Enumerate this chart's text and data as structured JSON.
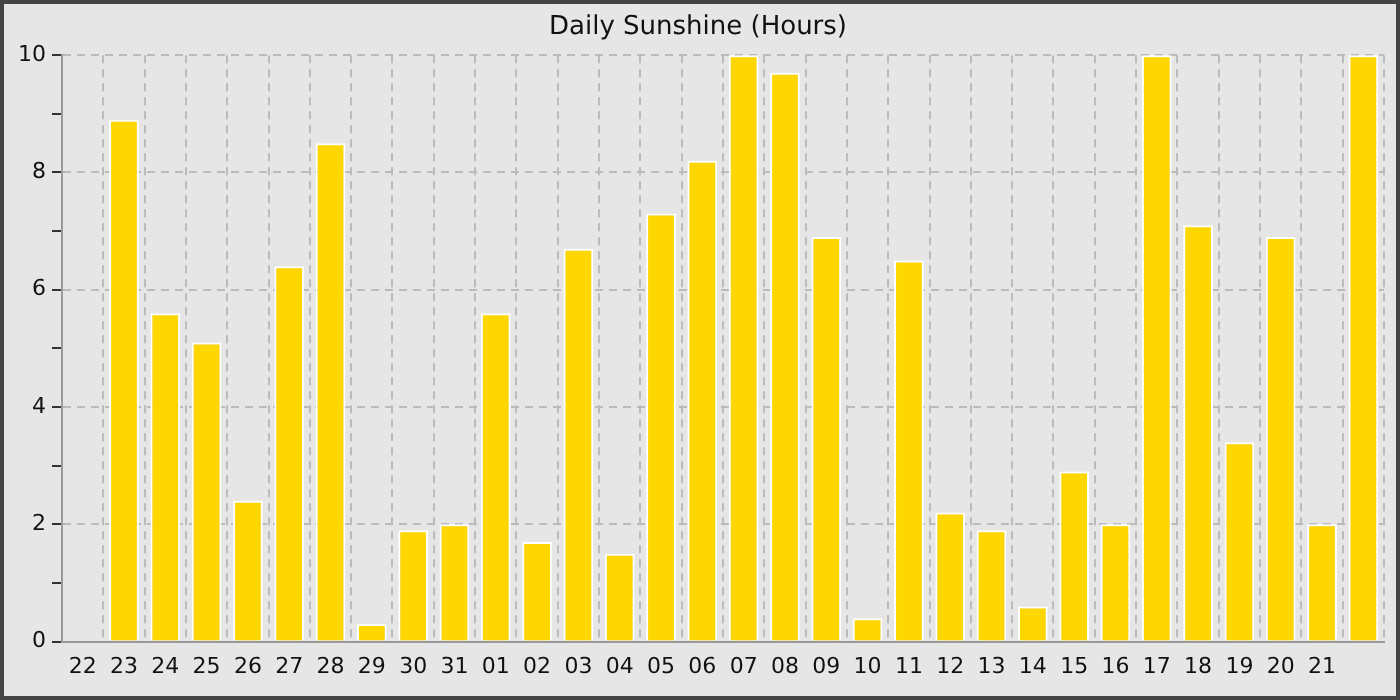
{
  "chart_data": {
    "type": "bar",
    "title": "Daily Sunshine (Hours)",
    "categories": [
      "22",
      "23",
      "24",
      "25",
      "26",
      "27",
      "28",
      "29",
      "30",
      "31",
      "01",
      "02",
      "03",
      "04",
      "05",
      "06",
      "07",
      "08",
      "09",
      "10",
      "11",
      "12",
      "13",
      "14",
      "15",
      "16",
      "17",
      "18",
      "19",
      "20",
      "21",
      null
    ],
    "values": [
      0,
      8.9,
      5.6,
      5.1,
      2.4,
      6.4,
      8.5,
      0.3,
      1.9,
      2.0,
      5.6,
      1.7,
      6.7,
      1.5,
      7.3,
      8.2,
      10,
      9.7,
      6.9,
      0.4,
      6.5,
      2.2,
      1.9,
      0.6,
      2.9,
      2.0,
      10,
      7.1,
      3.4,
      6.9,
      2.0,
      10
    ],
    "color": "#ffd700",
    "ylim": [
      0,
      10
    ],
    "yticks": [
      0,
      {
        "value": 1,
        "label": null
      },
      2,
      {
        "value": 3,
        "label": null
      },
      4,
      {
        "value": 5,
        "label": null
      },
      6,
      {
        "value": 7,
        "label": null
      },
      8,
      {
        "value": 9,
        "label": null
      },
      10
    ],
    "grid": true
  }
}
